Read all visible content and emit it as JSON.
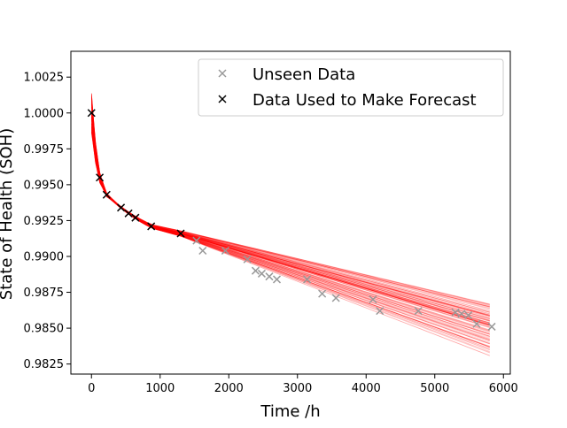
{
  "chart_data": {
    "type": "scatter",
    "title": "",
    "xlabel": "Time /h",
    "ylabel": "State of Health (SOH)",
    "xlim": [
      -300,
      6100
    ],
    "ylim": [
      0.9818,
      1.0043
    ],
    "xticks": [
      0,
      1000,
      2000,
      3000,
      4000,
      5000,
      6000
    ],
    "xtick_labels": [
      "0",
      "1000",
      "2000",
      "3000",
      "4000",
      "5000",
      "6000"
    ],
    "yticks": [
      0.9825,
      0.985,
      0.9875,
      0.99,
      0.9925,
      0.995,
      0.9975,
      1.0,
      1.0025
    ],
    "ytick_labels": [
      "0.9825",
      "0.9850",
      "0.9875",
      "0.9900",
      "0.9925",
      "0.9950",
      "0.9975",
      "1.0000",
      "1.0025"
    ],
    "legend_position": "top-right",
    "grid": false,
    "series": [
      {
        "name": "Unseen Data",
        "marker": "x",
        "color": "#999999",
        "points": [
          [
            1530,
            0.9911
          ],
          [
            1620,
            0.9904
          ],
          [
            1950,
            0.9904
          ],
          [
            2270,
            0.9898
          ],
          [
            2390,
            0.989
          ],
          [
            2480,
            0.9888
          ],
          [
            2590,
            0.9886
          ],
          [
            2700,
            0.9884
          ],
          [
            3140,
            0.9884
          ],
          [
            3360,
            0.9874
          ],
          [
            3560,
            0.9871
          ],
          [
            4100,
            0.987
          ],
          [
            4200,
            0.9862
          ],
          [
            4760,
            0.9862
          ],
          [
            5300,
            0.9861
          ],
          [
            5390,
            0.986
          ],
          [
            5490,
            0.9859
          ],
          [
            5610,
            0.9853
          ],
          [
            5830,
            0.9851
          ]
        ]
      },
      {
        "name": "Data Used to Make Forecast",
        "marker": "x",
        "color": "#000000",
        "points": [
          [
            0,
            1.0
          ],
          [
            120,
            0.9955
          ],
          [
            220,
            0.9943
          ],
          [
            430,
            0.9934
          ],
          [
            540,
            0.993
          ],
          [
            640,
            0.9927
          ],
          [
            870,
            0.9921
          ],
          [
            1300,
            0.9916
          ]
        ]
      }
    ],
    "forecast_band": {
      "color": "#ff0000",
      "description_free": true,
      "fit_points": [
        [
          0,
          1.0
        ],
        [
          60,
          0.9972
        ],
        [
          120,
          0.9955
        ],
        [
          220,
          0.9943
        ],
        [
          430,
          0.9934
        ],
        [
          640,
          0.9927
        ],
        [
          870,
          0.9921
        ],
        [
          1300,
          0.9916
        ]
      ],
      "initial_spread": 0.0028,
      "end_range": [
        0.983,
        0.9865
      ],
      "x_end": 5850,
      "n_lines": 120
    }
  }
}
